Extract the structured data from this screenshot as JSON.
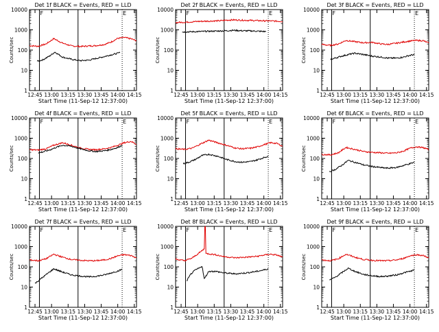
{
  "ylabel": "Counts/sec",
  "ytick_labels": [
    "1",
    "10",
    "100",
    "1000",
    "10000"
  ],
  "xtick_labels": [
    "12:45",
    "13:00",
    "13:15",
    "13:30",
    "13:45",
    "14:00",
    "14:15"
  ],
  "xlabel": "Start Time (11-Sep-12 12:37:00)",
  "colors": {
    "events": "#000000",
    "lld": "#e00000"
  },
  "chart_data": [
    {
      "type": "line",
      "title": "Det 1f BLACK = Events, RED = LLD",
      "xlim": [
        40,
        137
      ],
      "ylim": [
        1,
        10000
      ],
      "yscale": "log",
      "marker_lines": [
        {
          "x": 49,
          "style": "solid",
          "label": "F"
        },
        {
          "x": 84,
          "style": "solid",
          "label": ""
        },
        {
          "x": 124,
          "style": "dotted",
          "label": "E"
        }
      ],
      "series": [
        {
          "name": "LLD",
          "color": "#e00000",
          "x": [
            40,
            48,
            55,
            62,
            70,
            78,
            86,
            94,
            100,
            108,
            114,
            120,
            126,
            132,
            137
          ],
          "y": [
            165,
            155,
            200,
            370,
            220,
            160,
            150,
            160,
            165,
            190,
            250,
            380,
            420,
            360,
            290
          ]
        },
        {
          "name": "Events",
          "color": "#000000",
          "x": [
            47,
            52,
            58,
            63,
            70,
            78,
            86,
            94,
            100,
            106,
            112,
            118,
            122
          ],
          "y": [
            28,
            33,
            50,
            80,
            45,
            35,
            30,
            32,
            38,
            45,
            55,
            65,
            75
          ]
        }
      ]
    },
    {
      "type": "line",
      "title": "Det 2f BLACK = Events, RED = LLD",
      "xlim": [
        40,
        137
      ],
      "ylim": [
        1,
        10000
      ],
      "yscale": "log",
      "marker_lines": [
        {
          "x": 49,
          "style": "solid",
          "label": "F"
        },
        {
          "x": 84,
          "style": "solid",
          "label": ""
        },
        {
          "x": 124,
          "style": "dotted",
          "label": "E"
        }
      ],
      "series": [
        {
          "name": "LLD",
          "color": "#e00000",
          "x": [
            40,
            50,
            60,
            70,
            80,
            86,
            92,
            100,
            110,
            120,
            130,
            137
          ],
          "y": [
            2300,
            2400,
            2600,
            2700,
            2800,
            3000,
            3100,
            3000,
            2900,
            2800,
            2700,
            2600
          ]
        },
        {
          "name": "Events",
          "color": "#000000",
          "x": [
            46,
            52,
            60,
            70,
            80,
            86,
            92,
            100,
            110,
            122
          ],
          "y": [
            780,
            800,
            820,
            850,
            880,
            900,
            950,
            900,
            880,
            820
          ]
        }
      ]
    },
    {
      "type": "line",
      "title": "Det 3f BLACK = Events, RED = LLD",
      "xlim": [
        40,
        137
      ],
      "ylim": [
        1,
        10000
      ],
      "yscale": "log",
      "marker_lines": [
        {
          "x": 49,
          "style": "solid",
          "label": "F"
        },
        {
          "x": 84,
          "style": "solid",
          "label": ""
        },
        {
          "x": 124,
          "style": "dotted",
          "label": "E"
        }
      ],
      "series": [
        {
          "name": "LLD",
          "color": "#e00000",
          "x": [
            40,
            48,
            55,
            62,
            70,
            78,
            86,
            94,
            100,
            108,
            114,
            120,
            126,
            132,
            137
          ],
          "y": [
            190,
            170,
            200,
            300,
            260,
            230,
            240,
            200,
            190,
            220,
            250,
            280,
            300,
            290,
            220
          ]
        },
        {
          "name": "Events",
          "color": "#000000",
          "x": [
            48,
            52,
            58,
            64,
            70,
            78,
            86,
            94,
            100,
            108,
            114,
            120,
            124
          ],
          "y": [
            35,
            40,
            50,
            60,
            70,
            60,
            50,
            45,
            40,
            40,
            45,
            55,
            60
          ]
        }
      ]
    },
    {
      "type": "line",
      "title": "Det 4f BLACK = Events, RED = LLD",
      "xlim": [
        40,
        137
      ],
      "ylim": [
        1,
        10000
      ],
      "yscale": "log",
      "marker_lines": [
        {
          "x": 49,
          "style": "solid",
          "label": "F"
        },
        {
          "x": 84,
          "style": "solid",
          "label": ""
        },
        {
          "x": 124,
          "style": "dotted",
          "label": "E"
        }
      ],
      "series": [
        {
          "name": "LLD",
          "color": "#e00000",
          "x": [
            40,
            48,
            55,
            62,
            70,
            78,
            86,
            94,
            100,
            108,
            114,
            120,
            126,
            132,
            137
          ],
          "y": [
            270,
            260,
            300,
            450,
            600,
            450,
            330,
            280,
            270,
            300,
            350,
            450,
            600,
            700,
            500
          ]
        },
        {
          "name": "Events",
          "color": "#000000",
          "x": [
            48,
            52,
            58,
            64,
            70,
            78,
            86,
            94,
            100,
            108,
            114,
            120,
            124
          ],
          "y": [
            190,
            210,
            260,
            350,
            450,
            400,
            300,
            240,
            220,
            240,
            280,
            350,
            450
          ]
        }
      ]
    },
    {
      "type": "line",
      "title": "Det 5f BLACK = Events, RED = LLD",
      "xlim": [
        40,
        137
      ],
      "ylim": [
        1,
        10000
      ],
      "yscale": "log",
      "marker_lines": [
        {
          "x": 49,
          "style": "solid",
          "label": "F"
        },
        {
          "x": 84,
          "style": "solid",
          "label": ""
        },
        {
          "x": 124,
          "style": "dotted",
          "label": "E"
        }
      ],
      "series": [
        {
          "name": "LLD",
          "color": "#e00000",
          "x": [
            40,
            48,
            55,
            62,
            70,
            78,
            86,
            94,
            100,
            108,
            114,
            120,
            126,
            132,
            137
          ],
          "y": [
            300,
            280,
            320,
            500,
            800,
            600,
            450,
            330,
            300,
            320,
            370,
            480,
            600,
            550,
            400
          ]
        },
        {
          "name": "Events",
          "color": "#000000",
          "x": [
            47,
            52,
            58,
            64,
            70,
            78,
            86,
            94,
            100,
            108,
            114,
            120,
            124
          ],
          "y": [
            55,
            65,
            90,
            140,
            160,
            130,
            90,
            70,
            65,
            70,
            85,
            110,
            130
          ]
        }
      ]
    },
    {
      "type": "line",
      "title": "Det 6f BLACK = Events, RED = LLD",
      "xlim": [
        40,
        137
      ],
      "ylim": [
        1,
        10000
      ],
      "yscale": "log",
      "marker_lines": [
        {
          "x": 49,
          "style": "solid",
          "label": "F"
        },
        {
          "x": 84,
          "style": "solid",
          "label": ""
        },
        {
          "x": 124,
          "style": "dotted",
          "label": "E"
        }
      ],
      "series": [
        {
          "name": "LLD",
          "color": "#e00000",
          "x": [
            40,
            48,
            55,
            62,
            70,
            78,
            86,
            94,
            100,
            108,
            114,
            120,
            126,
            132,
            137
          ],
          "y": [
            160,
            150,
            190,
            350,
            280,
            220,
            200,
            190,
            180,
            190,
            230,
            320,
            380,
            340,
            280
          ]
        },
        {
          "name": "Events",
          "color": "#000000",
          "x": [
            47,
            52,
            58,
            64,
            70,
            78,
            86,
            94,
            100,
            108,
            114,
            120,
            124
          ],
          "y": [
            22,
            28,
            45,
            80,
            65,
            48,
            40,
            35,
            33,
            36,
            45,
            55,
            65
          ]
        }
      ]
    },
    {
      "type": "line",
      "title": "Det 7f BLACK = Events, RED = LLD",
      "xlim": [
        40,
        137
      ],
      "ylim": [
        1,
        10000
      ],
      "yscale": "log",
      "marker_lines": [
        {
          "x": 49,
          "style": "solid",
          "label": "F"
        },
        {
          "x": 84,
          "style": "solid",
          "label": ""
        },
        {
          "x": 124,
          "style": "dotted",
          "label": "E"
        }
      ],
      "series": [
        {
          "name": "LLD",
          "color": "#e00000",
          "x": [
            40,
            48,
            55,
            62,
            70,
            78,
            86,
            94,
            100,
            108,
            114,
            120,
            126,
            132,
            137
          ],
          "y": [
            220,
            200,
            250,
            420,
            300,
            230,
            210,
            200,
            200,
            220,
            260,
            350,
            400,
            360,
            280
          ]
        },
        {
          "name": "Events",
          "color": "#000000",
          "x": [
            45,
            50,
            56,
            62,
            70,
            78,
            86,
            94,
            100,
            108,
            114,
            120,
            124
          ],
          "y": [
            15,
            25,
            45,
            80,
            55,
            40,
            35,
            32,
            34,
            40,
            50,
            62,
            75
          ]
        }
      ]
    },
    {
      "type": "line",
      "title": "Det 8f BLACK = Events, RED = LLD",
      "xlim": [
        40,
        137
      ],
      "ylim": [
        1,
        10000
      ],
      "yscale": "log",
      "marker_lines": [
        {
          "x": 49,
          "style": "solid",
          "label": "F"
        },
        {
          "x": 84,
          "style": "solid",
          "label": ""
        },
        {
          "x": 124,
          "style": "dotted",
          "label": "E"
        }
      ],
      "series": [
        {
          "name": "LLD",
          "color": "#e00000",
          "x": [
            40,
            48,
            55,
            62,
            66,
            67,
            69,
            76,
            84,
            94,
            104,
            114,
            120,
            126,
            132,
            137
          ],
          "y": [
            240,
            200,
            270,
            520,
            780,
            10000,
            450,
            400,
            320,
            280,
            300,
            330,
            380,
            420,
            380,
            300
          ]
        },
        {
          "name": "Events",
          "color": "#000000",
          "x": [
            50,
            54,
            58,
            62,
            64,
            66,
            70,
            76,
            84,
            94,
            104,
            114,
            120,
            124
          ],
          "y": [
            20,
            45,
            70,
            90,
            110,
            25,
            60,
            60,
            50,
            45,
            50,
            60,
            70,
            80
          ]
        }
      ]
    },
    {
      "type": "line",
      "title": "Det 9f BLACK = Events, RED = LLD",
      "xlim": [
        40,
        137
      ],
      "ylim": [
        1,
        10000
      ],
      "yscale": "log",
      "marker_lines": [
        {
          "x": 49,
          "style": "solid",
          "label": "F"
        },
        {
          "x": 84,
          "style": "solid",
          "label": ""
        },
        {
          "x": 124,
          "style": "dotted",
          "label": "E"
        }
      ],
      "series": [
        {
          "name": "LLD",
          "color": "#e00000",
          "x": [
            40,
            48,
            55,
            62,
            70,
            78,
            86,
            94,
            100,
            108,
            114,
            120,
            126,
            132,
            137
          ],
          "y": [
            220,
            200,
            250,
            420,
            300,
            230,
            210,
            200,
            200,
            220,
            260,
            350,
            400,
            360,
            280
          ]
        },
        {
          "name": "Events",
          "color": "#000000",
          "x": [
            47,
            52,
            58,
            64,
            70,
            78,
            86,
            94,
            100,
            108,
            114,
            120,
            124
          ],
          "y": [
            22,
            30,
            50,
            85,
            60,
            42,
            36,
            33,
            35,
            40,
            50,
            60,
            70
          ]
        }
      ]
    }
  ]
}
